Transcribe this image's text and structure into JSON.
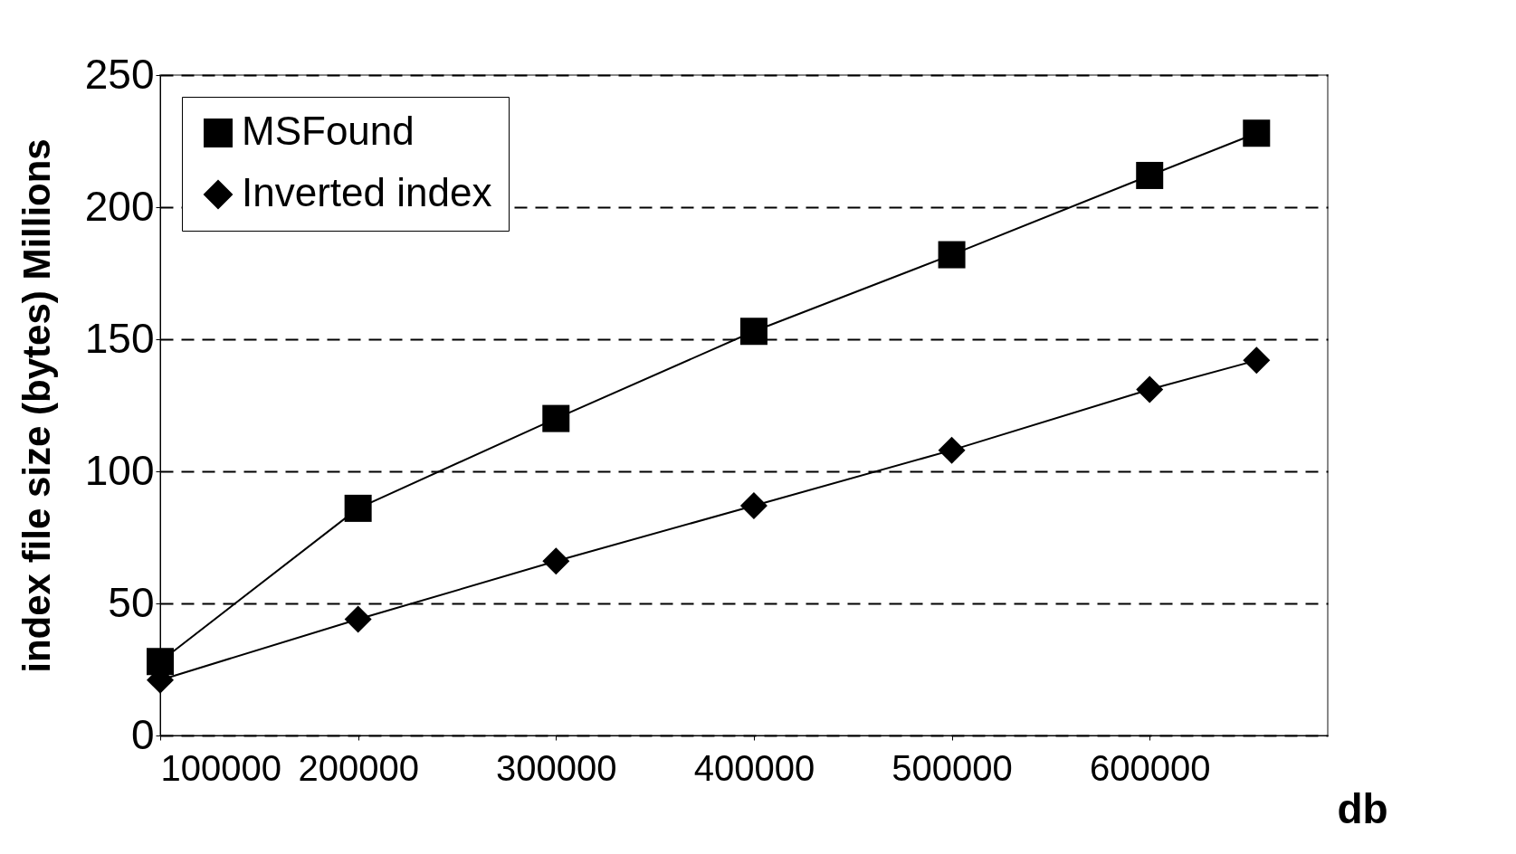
{
  "chart_data": {
    "type": "line",
    "xlabel": "db",
    "ylabel": "index file size (bytes) Millions",
    "x": [
      100000,
      200000,
      300000,
      400000,
      500000,
      600000,
      654000
    ],
    "series": [
      {
        "name": "MSFound",
        "color": "#000000",
        "marker": "square",
        "values": [
          28,
          86,
          120,
          153,
          182,
          212,
          228
        ]
      },
      {
        "name": "Inverted index",
        "color": "#000000",
        "marker": "diamond",
        "values": [
          21,
          44,
          66,
          87,
          108,
          131,
          142
        ]
      }
    ],
    "xlim": [
      100000,
      690000
    ],
    "xticks": [
      100000,
      200000,
      300000,
      400000,
      500000,
      600000
    ],
    "ylim": [
      0,
      250
    ],
    "yticks": [
      0,
      50,
      100,
      150,
      200,
      250
    ],
    "grid": "y",
    "legend": "top left",
    "line_style": "solid"
  }
}
